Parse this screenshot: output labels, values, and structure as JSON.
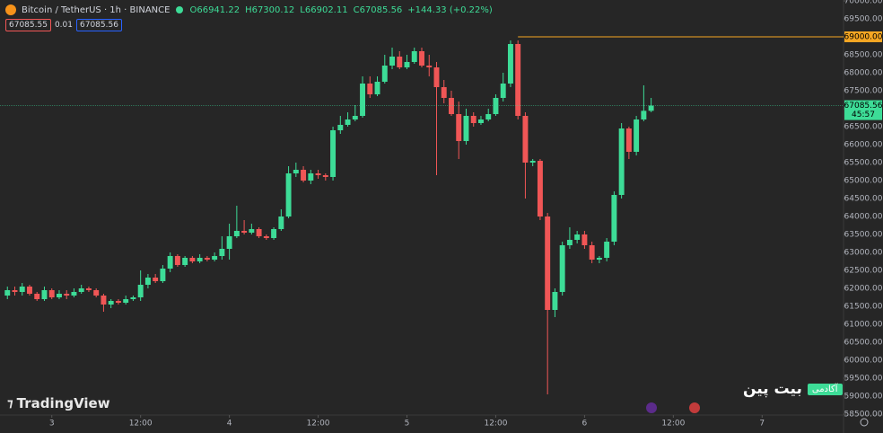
{
  "header": {
    "symbol": "Bitcoin / TetherUS · 1h · BINANCE",
    "ohlc": [
      "O66941.22",
      "H67300.12",
      "L66902.11",
      "C67085.56",
      "+144.33 (+0.22%)"
    ],
    "bid": "67085.55",
    "spread": "0.01",
    "ask": "67085.56"
  },
  "logo": "TradingView",
  "watermark": {
    "name": "بیت پین",
    "tag": "آکادمی"
  },
  "chart_data": {
    "type": "candlestick",
    "up_color": "#3ddc97",
    "down_color": "#f05656",
    "x": [
      -6,
      -5,
      -4,
      -3,
      -2,
      -1,
      0,
      1,
      2,
      3,
      4,
      5,
      6,
      7,
      8,
      9,
      10,
      11,
      12,
      13,
      14,
      15,
      16,
      17,
      18,
      19,
      20,
      21,
      22,
      23,
      24,
      25,
      26,
      27,
      28,
      29,
      30,
      31,
      32,
      33,
      34,
      35,
      36,
      37,
      38,
      39,
      40,
      41,
      42,
      43,
      44,
      45,
      46,
      47,
      48,
      49,
      50,
      51,
      52,
      53,
      54,
      55,
      56,
      57,
      58,
      59,
      60,
      61,
      62,
      63,
      64,
      65,
      66,
      67,
      68,
      69,
      70,
      71,
      72,
      73,
      74,
      75,
      76,
      77,
      78,
      79,
      80,
      81
    ],
    "open": [
      61800,
      61950,
      61900,
      62050,
      61850,
      61700,
      61950,
      61750,
      61850,
      61800,
      61900,
      62000,
      61950,
      61800,
      61550,
      61650,
      61600,
      61700,
      61750,
      62100,
      62300,
      62200,
      62550,
      62900,
      62650,
      62850,
      62750,
      62850,
      62800,
      62900,
      63100,
      63450,
      63600,
      63550,
      63650,
      63450,
      63400,
      63650,
      64000,
      65200,
      65300,
      65000,
      65200,
      65150,
      65100,
      66400,
      66550,
      66700,
      66800,
      67700,
      67400,
      67750,
      68200,
      68450,
      68150,
      68300,
      68600,
      68200,
      68150,
      67600,
      67300,
      66850,
      66100,
      66800,
      66600,
      66700,
      66850,
      67300,
      67700,
      68800,
      66800,
      65500,
      65550,
      64000,
      61400,
      61900,
      63200,
      63350,
      63500,
      63200,
      62800,
      62850,
      63300,
      64600,
      66450,
      65800,
      66700,
      66941.22
    ],
    "high": [
      62050,
      62050,
      62150,
      62100,
      61900,
      62050,
      62000,
      61950,
      61950,
      62000,
      62100,
      62050,
      62000,
      61850,
      61700,
      61700,
      61800,
      61800,
      62500,
      62400,
      62400,
      62650,
      63000,
      62950,
      62900,
      62900,
      62950,
      62900,
      63000,
      63450,
      63800,
      64300,
      63900,
      63800,
      63700,
      63500,
      63700,
      64200,
      65400,
      65500,
      65400,
      65300,
      65300,
      65200,
      66500,
      66800,
      66900,
      67100,
      67900,
      67900,
      67900,
      68500,
      68700,
      68600,
      68500,
      68700,
      68700,
      68500,
      68300,
      67800,
      67500,
      67200,
      67000,
      66900,
      66800,
      67000,
      67400,
      68000,
      68900,
      68900,
      66900,
      65600,
      65600,
      64100,
      62000,
      63300,
      63700,
      63600,
      63600,
      63300,
      62900,
      63400,
      64700,
      66600,
      66500,
      66800,
      67650,
      67300.12
    ],
    "low": [
      61700,
      61800,
      61800,
      61800,
      61650,
      61650,
      61700,
      61700,
      61700,
      61750,
      61850,
      61900,
      61750,
      61350,
      61450,
      61550,
      61550,
      61650,
      61650,
      62000,
      62150,
      62150,
      62450,
      62600,
      62600,
      62700,
      62700,
      62750,
      62750,
      62800,
      62800,
      63400,
      63500,
      63500,
      63400,
      63350,
      63350,
      63600,
      63950,
      65100,
      64950,
      64900,
      65050,
      65000,
      65000,
      66300,
      66500,
      66650,
      66750,
      67300,
      67350,
      67700,
      68100,
      68100,
      68100,
      68250,
      68150,
      67900,
      65150,
      67150,
      66800,
      65600,
      66000,
      66500,
      66550,
      66650,
      66800,
      67200,
      67600,
      66700,
      64500,
      65400,
      63900,
      59050,
      61200,
      61800,
      63100,
      63250,
      63100,
      62700,
      62700,
      62750,
      63200,
      64500,
      65600,
      65700,
      66650,
      66902.11
    ],
    "close": [
      61950,
      61900,
      62050,
      61850,
      61700,
      61950,
      61750,
      61850,
      61800,
      61900,
      62000,
      61950,
      61800,
      61550,
      61650,
      61600,
      61700,
      61750,
      62100,
      62300,
      62200,
      62550,
      62900,
      62650,
      62850,
      62750,
      62850,
      62800,
      62900,
      63100,
      63450,
      63600,
      63550,
      63650,
      63450,
      63400,
      63650,
      64000,
      65200,
      65300,
      65000,
      65200,
      65150,
      65100,
      66400,
      66550,
      66700,
      66800,
      67700,
      67400,
      67750,
      68200,
      68450,
      68150,
      68300,
      68600,
      68200,
      68150,
      67600,
      67300,
      66850,
      66100,
      66800,
      66600,
      66700,
      66850,
      67300,
      67700,
      68800,
      66800,
      65500,
      65550,
      64000,
      61400,
      61900,
      63200,
      63350,
      63500,
      63200,
      62800,
      62850,
      63300,
      64600,
      66450,
      65800,
      66700,
      66941.22,
      67085.56
    ],
    "xlim": [
      -7,
      107
    ],
    "xticks": [
      {
        "value": 0,
        "label": "3"
      },
      {
        "value": 12,
        "label": "12:00"
      },
      {
        "value": 24,
        "label": "4"
      },
      {
        "value": 36,
        "label": "12:00"
      },
      {
        "value": 48,
        "label": "5"
      },
      {
        "value": 60,
        "label": "12:00"
      },
      {
        "value": 72,
        "label": "6"
      },
      {
        "value": 84,
        "label": "12:00"
      },
      {
        "value": 96,
        "label": "7"
      }
    ],
    "ylim": [
      58475,
      70025
    ],
    "yticks": [
      {
        "value": 58500,
        "label": "58500.00"
      },
      {
        "value": 59000,
        "label": "59000.00"
      },
      {
        "value": 59500,
        "label": "59500.00"
      },
      {
        "value": 60000,
        "label": "60000.00"
      },
      {
        "value": 60500,
        "label": "60500.00"
      },
      {
        "value": 61000,
        "label": "61000.00"
      },
      {
        "value": 61500,
        "label": "61500.00"
      },
      {
        "value": 62000,
        "label": "62000.00"
      },
      {
        "value": 62500,
        "label": "62500.00"
      },
      {
        "value": 63000,
        "label": "63000.00"
      },
      {
        "value": 63500,
        "label": "63500.00"
      },
      {
        "value": 64000,
        "label": "64000.00"
      },
      {
        "value": 64500,
        "label": "64500.00"
      },
      {
        "value": 65000,
        "label": "65000.00"
      },
      {
        "value": 65500,
        "label": "65500.00"
      },
      {
        "value": 66000,
        "label": "66000.00"
      },
      {
        "value": 66500,
        "label": "66500.00"
      },
      {
        "value": 67000,
        "label": "67000.00"
      },
      {
        "value": 67500,
        "label": "67500.00"
      },
      {
        "value": 68000,
        "label": "68000.00"
      },
      {
        "value": 68500,
        "label": "68500.00"
      },
      {
        "value": 69000,
        "label": "69000.00"
      },
      {
        "value": 69500,
        "label": "69500.00"
      },
      {
        "value": 70000,
        "label": "70000.00"
      }
    ],
    "hline": {
      "value": 69000,
      "label": "69000.00",
      "start": 63,
      "color": "#f5a623"
    },
    "last_price": {
      "value": 67085.56,
      "label": "67085.56",
      "countdown": "45:57",
      "color": "#3ddc97"
    }
  }
}
